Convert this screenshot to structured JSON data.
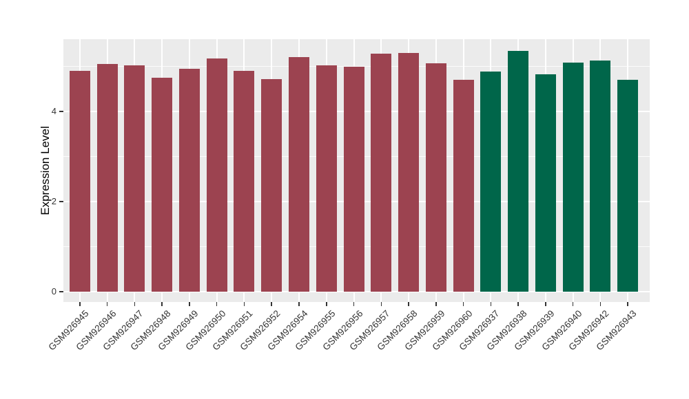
{
  "chart_data": {
    "type": "bar",
    "title": "",
    "xlabel": "",
    "ylabel": "Expression Level",
    "categories": [
      "GSM926945",
      "GSM926946",
      "GSM926947",
      "GSM926948",
      "GSM926949",
      "GSM926950",
      "GSM926951",
      "GSM926952",
      "GSM926954",
      "GSM926955",
      "GSM926956",
      "GSM926957",
      "GSM926958",
      "GSM926959",
      "GSM926960",
      "GSM926937",
      "GSM926938",
      "GSM926939",
      "GSM926940",
      "GSM926942",
      "GSM926943"
    ],
    "values": [
      4.9,
      5.06,
      5.02,
      4.75,
      4.94,
      5.18,
      4.9,
      4.72,
      5.21,
      5.03,
      4.99,
      5.28,
      5.3,
      5.07,
      4.7,
      4.89,
      5.34,
      4.82,
      5.08,
      5.13,
      4.71
    ],
    "bar_groups": [
      "maroon",
      "maroon",
      "maroon",
      "maroon",
      "maroon",
      "maroon",
      "maroon",
      "maroon",
      "maroon",
      "maroon",
      "maroon",
      "maroon",
      "maroon",
      "maroon",
      "maroon",
      "green",
      "green",
      "green",
      "green",
      "green",
      "green"
    ],
    "palette": {
      "maroon": "#9C4350",
      "green": "#00664A"
    },
    "yticks_major": [
      0,
      2,
      4
    ],
    "yticks_minor": [
      1,
      3,
      5
    ],
    "ylim": [
      -0.23,
      5.6
    ],
    "grid": "on",
    "legend": "none",
    "panel_background": "#EBEBEB",
    "gridline_color": "#FFFFFF",
    "tick_color": "#333333"
  }
}
